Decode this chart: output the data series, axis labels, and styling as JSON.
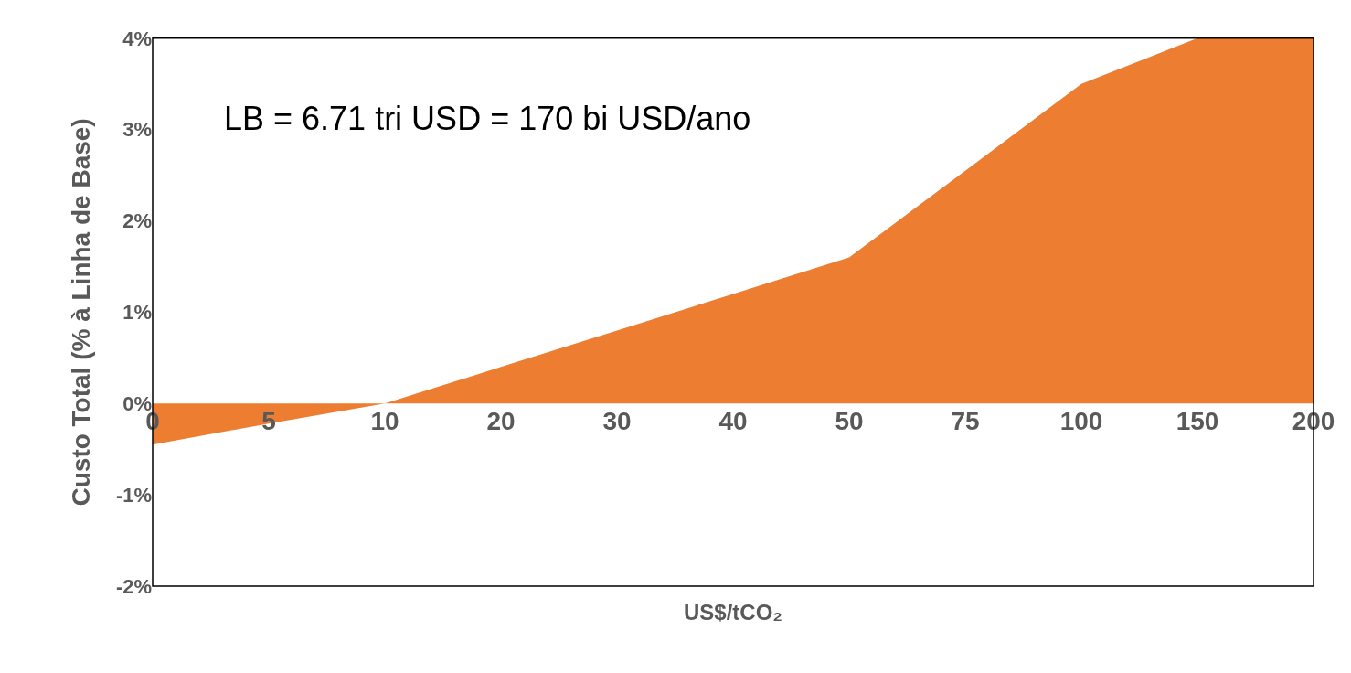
{
  "chart_data": {
    "type": "area",
    "categories": [
      "0",
      "5",
      "10",
      "20",
      "30",
      "40",
      "50",
      "75",
      "100",
      "150",
      "200"
    ],
    "series": [
      {
        "color": "#ed7d31",
        "values": [
          -0.45,
          -0.22,
          0,
          0.4,
          0.8,
          1.2,
          1.6,
          2.55,
          3.5,
          4,
          4
        ]
      }
    ],
    "xlabel": "US$/tCO₂",
    "ylabel": "Custo Total (% à Linha de Base)",
    "ylim": [
      -2,
      4
    ],
    "yticks": [
      {
        "value": -2,
        "label": "-2%"
      },
      {
        "value": -1,
        "label": "-1%"
      },
      {
        "value": 0,
        "label": "0%"
      },
      {
        "value": 1,
        "label": "1%"
      },
      {
        "value": 2,
        "label": "2%"
      },
      {
        "value": 3,
        "label": "3%"
      },
      {
        "value": 4,
        "label": "4%"
      }
    ],
    "annotations": [
      "LB = 6.71 tri USD = 170 bi USD/ano"
    ]
  }
}
